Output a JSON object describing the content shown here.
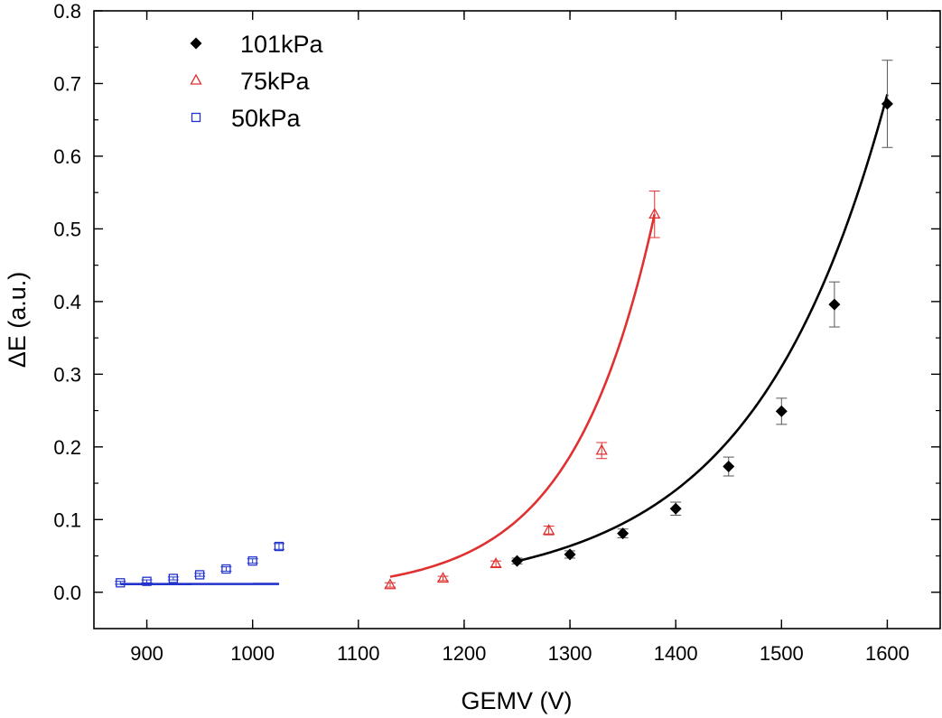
{
  "chart_data": {
    "type": "scatter",
    "xlabel": "GEMV (V)",
    "ylabel": "ΔE (a.u.)",
    "xlim": [
      850,
      1650
    ],
    "ylim": [
      -0.05,
      0.8
    ],
    "xticks": [
      900,
      1000,
      1100,
      1200,
      1300,
      1400,
      1500,
      1600
    ],
    "yticks": [
      0.0,
      0.1,
      0.2,
      0.3,
      0.4,
      0.5,
      0.6,
      0.7,
      0.8
    ],
    "xtick_labels": [
      "900",
      "1000",
      "1100",
      "1200",
      "1300",
      "1400",
      "1500",
      "1600"
    ],
    "ytick_labels": [
      "0.0",
      "0.1",
      "0.2",
      "0.3",
      "0.4",
      "0.5",
      "0.6",
      "0.7",
      "0.8"
    ],
    "grid": false,
    "legend_position": "top-left",
    "series": [
      {
        "name": "101kPa",
        "color": "#000000",
        "marker": "filled-diamond",
        "x": [
          1250,
          1300,
          1350,
          1400,
          1450,
          1500,
          1550,
          1600
        ],
        "y": [
          0.043,
          0.052,
          0.081,
          0.115,
          0.173,
          0.249,
          0.396,
          0.672
        ],
        "err": [
          0.004,
          0.005,
          0.006,
          0.009,
          0.013,
          0.018,
          0.031,
          0.06
        ],
        "fit": {
          "a": 2.146e-06,
          "b": 0.007921
        }
      },
      {
        "name": "75kPa",
        "color": "#e03030",
        "marker": "open-triangle",
        "x": [
          1130,
          1180,
          1230,
          1280,
          1330,
          1380
        ],
        "y": [
          0.01,
          0.019,
          0.039,
          0.085,
          0.195,
          0.52
        ],
        "err": [
          0.003,
          0.003,
          0.004,
          0.006,
          0.011,
          0.032
        ],
        "fit": {
          "a": 1.14e-08,
          "b": 0.01278
        }
      },
      {
        "name": "50kPa",
        "color": "#2233cc",
        "marker": "open-square",
        "x": [
          875,
          900,
          925,
          950,
          975,
          1000,
          1025
        ],
        "y": [
          0.013,
          0.015,
          0.019,
          0.024,
          0.032,
          0.043,
          0.063
        ],
        "err": [
          0.002,
          0.002,
          0.002,
          0.002,
          0.003,
          0.003,
          0.004
        ],
        "fit": {
          "a": 2.73e-05,
          "b": 0.00756,
          "c": 0.0113
        }
      }
    ]
  }
}
